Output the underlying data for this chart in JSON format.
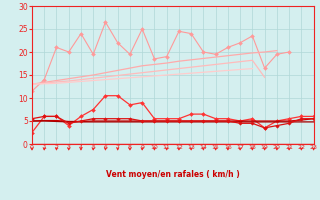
{
  "xlabel": "Vent moyen/en rafales ( km/h )",
  "x_values": [
    0,
    1,
    2,
    3,
    4,
    5,
    6,
    7,
    8,
    9,
    10,
    11,
    12,
    13,
    14,
    15,
    16,
    17,
    18,
    19,
    20,
    21,
    22,
    23
  ],
  "series": [
    {
      "label": "jagged_light_pink",
      "color": "#ff9999",
      "linewidth": 0.8,
      "marker": "D",
      "markersize": 2.0,
      "y": [
        11.5,
        14.0,
        21.0,
        20.0,
        24.0,
        19.5,
        26.5,
        22.0,
        19.5,
        25.0,
        18.5,
        19.0,
        24.5,
        24.0,
        20.0,
        19.5,
        21.0,
        22.0,
        23.5,
        16.5,
        19.5,
        20.0,
        null,
        null
      ]
    },
    {
      "label": "smooth_upper_pink",
      "color": "#ffaaaa",
      "linewidth": 0.9,
      "marker": null,
      "markersize": 0,
      "y": [
        13.0,
        13.4,
        13.8,
        14.2,
        14.6,
        15.0,
        15.5,
        16.0,
        16.5,
        17.0,
        17.3,
        17.6,
        18.0,
        18.3,
        18.6,
        18.9,
        19.2,
        19.5,
        19.8,
        20.0,
        20.3,
        null,
        null,
        null
      ]
    },
    {
      "label": "smooth_mid_pink",
      "color": "#ffbbbb",
      "linewidth": 0.9,
      "marker": null,
      "markersize": 0,
      "y": [
        13.0,
        13.2,
        13.5,
        13.7,
        14.0,
        14.3,
        14.6,
        14.9,
        15.2,
        15.5,
        15.8,
        16.1,
        16.4,
        16.7,
        17.0,
        17.3,
        17.6,
        17.9,
        18.2,
        14.5,
        null,
        null,
        null,
        null
      ]
    },
    {
      "label": "smooth_lower_pink",
      "color": "#ffcccc",
      "linewidth": 0.9,
      "marker": null,
      "markersize": 0,
      "y": [
        13.0,
        13.1,
        13.2,
        13.4,
        13.6,
        13.8,
        14.0,
        14.2,
        14.4,
        14.6,
        14.8,
        15.0,
        15.2,
        15.4,
        15.6,
        15.8,
        16.0,
        16.2,
        16.4,
        null,
        null,
        null,
        null,
        null
      ]
    },
    {
      "label": "jagged_red",
      "color": "#ff3333",
      "linewidth": 0.9,
      "marker": "D",
      "markersize": 2.0,
      "y": [
        2.5,
        6.0,
        6.0,
        4.0,
        6.0,
        7.5,
        10.5,
        10.5,
        8.5,
        9.0,
        5.5,
        5.5,
        5.5,
        6.5,
        6.5,
        5.5,
        5.5,
        5.0,
        5.5,
        3.5,
        5.0,
        5.5,
        6.0,
        6.0
      ]
    },
    {
      "label": "flat_dark_red1",
      "color": "#cc0000",
      "linewidth": 0.9,
      "marker": null,
      "markersize": 0,
      "y": [
        5.0,
        5.1,
        5.1,
        4.9,
        4.9,
        5.0,
        5.0,
        5.0,
        5.0,
        5.0,
        5.0,
        5.0,
        5.0,
        5.0,
        5.0,
        5.0,
        5.0,
        5.0,
        5.0,
        5.0,
        5.0,
        5.0,
        5.2,
        5.5
      ]
    },
    {
      "label": "flat_dark_red2",
      "color": "#aa0000",
      "linewidth": 0.9,
      "marker": null,
      "markersize": 0,
      "y": [
        5.0,
        5.0,
        4.9,
        4.8,
        4.8,
        4.8,
        4.8,
        4.8,
        4.8,
        4.8,
        4.8,
        4.8,
        4.8,
        4.8,
        4.8,
        4.8,
        4.8,
        4.8,
        4.8,
        4.8,
        4.8,
        4.8,
        4.8,
        4.8
      ]
    },
    {
      "label": "nearly_flat_red_markers",
      "color": "#dd1111",
      "linewidth": 0.9,
      "marker": "D",
      "markersize": 1.8,
      "y": [
        5.5,
        6.0,
        6.0,
        4.5,
        5.0,
        5.5,
        5.5,
        5.5,
        5.5,
        5.0,
        5.0,
        5.0,
        5.0,
        5.0,
        5.0,
        5.0,
        5.0,
        4.5,
        4.5,
        3.5,
        4.0,
        4.5,
        5.5,
        5.5
      ]
    }
  ],
  "xlim": [
    0,
    23
  ],
  "ylim": [
    0,
    30
  ],
  "yticks": [
    0,
    5,
    10,
    15,
    20,
    25,
    30
  ],
  "xticks": [
    0,
    1,
    2,
    3,
    4,
    5,
    6,
    7,
    8,
    9,
    10,
    11,
    12,
    13,
    14,
    15,
    16,
    17,
    18,
    19,
    20,
    21,
    22,
    23
  ],
  "bg_color": "#d4efef",
  "grid_color": "#b0d8d8",
  "tick_color": "#ee2222",
  "label_color": "#cc0000",
  "arrow_color": "#ee2222"
}
